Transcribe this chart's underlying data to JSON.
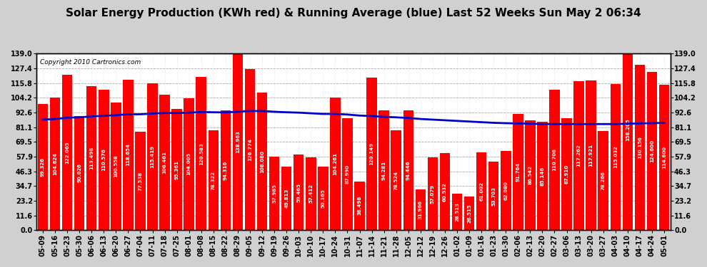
{
  "title": "Solar Energy Production (KWh red) & Running Average (blue) Last 52 Weeks Sun May 2 06:34",
  "copyright": "Copyright 2010 Cartronics.com",
  "bar_color": "#ff0000",
  "avg_line_color": "#0000cc",
  "background_color": "#d0d0d0",
  "plot_bg_color": "#ffffff",
  "categories": [
    "05-09",
    "05-16",
    "05-23",
    "05-30",
    "06-06",
    "06-13",
    "06-20",
    "06-27",
    "07-04",
    "07-11",
    "07-18",
    "07-25",
    "08-01",
    "08-08",
    "08-15",
    "08-22",
    "08-29",
    "09-05",
    "09-12",
    "09-19",
    "09-26",
    "10-03",
    "10-10",
    "10-17",
    "10-24",
    "10-31",
    "11-07",
    "11-14",
    "11-21",
    "11-28",
    "12-05",
    "12-12",
    "12-19",
    "12-26",
    "01-02",
    "01-09",
    "01-16",
    "01-23",
    "01-30",
    "02-06",
    "02-13",
    "02-20",
    "02-27",
    "03-06",
    "03-13",
    "03-20",
    "03-27",
    "04-03",
    "04-10",
    "04-17",
    "04-24",
    "05-01"
  ],
  "values": [
    99.326,
    104.624,
    122.065,
    90.026,
    113.498,
    110.576,
    100.558,
    118.654,
    77.538,
    115.419,
    106.461,
    95.361,
    104.005,
    120.583,
    78.322,
    94.316,
    138.963,
    126.774,
    108.08,
    57.985,
    49.813,
    59.465,
    57.412,
    50.165,
    104.261,
    87.99,
    38.498,
    120.149,
    94.281,
    78.524,
    94.446,
    31.966,
    57.079,
    60.532,
    28.513,
    26.515,
    61.002,
    53.703,
    62.08,
    91.764,
    86.542,
    85.146,
    110.706,
    87.91,
    117.262,
    117.921,
    78.266,
    115.032,
    158.205,
    130.156,
    124.6,
    114.6
  ],
  "running_avg": [
    87.0,
    87.5,
    88.5,
    88.8,
    89.5,
    90.0,
    90.5,
    91.2,
    91.2,
    91.8,
    92.2,
    92.2,
    92.5,
    93.0,
    92.8,
    92.7,
    93.2,
    93.8,
    93.8,
    93.2,
    92.8,
    92.5,
    92.0,
    91.5,
    91.5,
    91.0,
    90.2,
    89.8,
    89.2,
    88.8,
    88.3,
    87.5,
    87.0,
    86.5,
    86.0,
    85.5,
    85.0,
    84.5,
    84.2,
    84.0,
    83.8,
    83.5,
    83.5,
    83.5,
    83.5,
    83.5,
    83.5,
    83.5,
    83.8,
    84.0,
    84.2,
    84.5
  ],
  "yticks": [
    0.0,
    11.6,
    23.2,
    34.7,
    46.3,
    57.9,
    69.5,
    81.1,
    92.6,
    104.2,
    115.8,
    127.4,
    139.0
  ],
  "ylim": [
    0,
    139.0
  ],
  "grid_color": "#aaaaaa",
  "text_color": "#000000",
  "title_fontsize": 11,
  "copyright_fontsize": 6.5,
  "tick_fontsize": 7,
  "value_fontsize": 5,
  "bar_width": 0.85
}
